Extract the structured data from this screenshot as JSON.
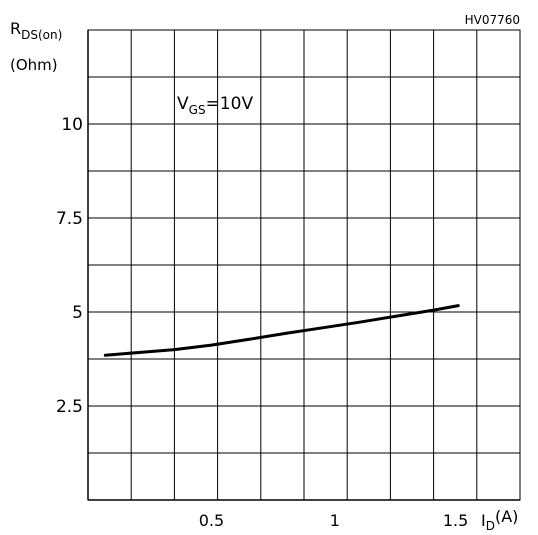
{
  "chart_data": {
    "type": "line",
    "code": "HV07760",
    "annotation": {
      "main": "V",
      "sub": "GS",
      "rest": "=10V"
    },
    "y_axis_label": {
      "main": "R",
      "sub": "DS(on)",
      "unit": "(Ohm)"
    },
    "x_axis_label": {
      "main": "I",
      "sub": "D",
      "unit": "(A)"
    },
    "x_ticks": [
      {
        "value": 0.5,
        "label": "0.5"
      },
      {
        "value": 1,
        "label": "1"
      },
      {
        "value": 1.5,
        "label": "1.5"
      }
    ],
    "y_ticks": [
      {
        "value": 2.5,
        "label": "2.5"
      },
      {
        "value": 5,
        "label": "5"
      },
      {
        "value": 7.5,
        "label": "7.5"
      },
      {
        "value": 10,
        "label": "10"
      }
    ],
    "xlim": [
      0,
      1.75
    ],
    "ylim": [
      0,
      12.5
    ],
    "grid": true,
    "series": [
      {
        "x": [
          0.07,
          0.2,
          0.35,
          0.5,
          0.65,
          0.8,
          0.95,
          1.1,
          1.25,
          1.4,
          1.5
        ],
        "y": [
          3.85,
          3.92,
          4.0,
          4.12,
          4.27,
          4.43,
          4.58,
          4.73,
          4.89,
          5.05,
          5.17
        ]
      }
    ]
  }
}
